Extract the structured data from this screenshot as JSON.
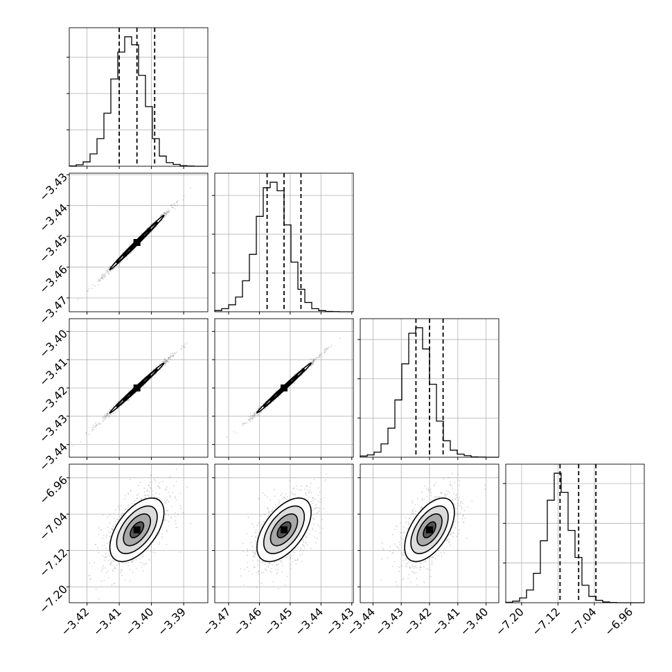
{
  "figure": {
    "type": "corner",
    "grid": true,
    "colors": {
      "line": "#000000",
      "grid": "#b0b0b0",
      "scatter": "#808080"
    }
  },
  "chart_data": {
    "type": "corner",
    "n_params": 4,
    "x_ranges": [
      [
        -3.4255,
        -3.3825
      ],
      [
        -3.4745,
        -3.4295
      ],
      [
        -3.4445,
        -3.3955
      ],
      [
        -7.235,
        -6.93
      ]
    ],
    "y_ranges": [
      null,
      [
        -3.4745,
        -3.4295
      ],
      [
        -3.4445,
        -3.3955
      ],
      [
        -7.235,
        -6.93
      ]
    ],
    "x_ticks": [
      [
        -3.42,
        -3.41,
        -3.4,
        -3.39
      ],
      [
        -3.47,
        -3.46,
        -3.45,
        -3.44,
        -3.43
      ],
      [
        -3.44,
        -3.43,
        -3.42,
        -3.41,
        -3.4
      ],
      [
        -7.2,
        -7.12,
        -7.04,
        -6.96
      ]
    ],
    "x_tick_labels": [
      [
        "−3.42",
        "−3.41",
        "−3.40",
        "−3.39"
      ],
      [
        "−3.47",
        "−3.46",
        "−3.45",
        "−3.44",
        "−3.43"
      ],
      [
        "−3.44",
        "−3.43",
        "−3.42",
        "−3.41",
        "−3.40"
      ],
      [
        "−7.20",
        "−7.12",
        "−7.04",
        "−6.96"
      ]
    ],
    "y_ticks": [
      null,
      [
        -3.47,
        -3.46,
        -3.45,
        -3.44,
        -3.43
      ],
      [
        -3.44,
        -3.43,
        -3.42,
        -3.41,
        -3.4
      ],
      [
        -7.2,
        -7.12,
        -7.04,
        -6.96
      ]
    ],
    "y_tick_labels": [
      null,
      [
        "−3.47",
        "−3.46",
        "−3.45",
        "−3.44",
        "−3.43"
      ],
      [
        "−3.44",
        "−3.43",
        "−3.42",
        "−3.41",
        "−3.40"
      ],
      [
        "−7.20",
        "−7.12",
        "−7.04",
        "−6.96"
      ]
    ],
    "histograms": [
      {
        "param": 0,
        "bin_edges_range": [
          -3.4255,
          -3.3825
        ],
        "bins": 20,
        "counts": [
          0.4,
          2,
          6,
          17,
          38,
          73,
          120,
          157,
          178,
          167,
          125,
          82,
          38,
          14,
          5,
          2.5,
          0.8,
          0.3,
          0,
          0
        ],
        "quantiles": [
          -3.41,
          -3.4045,
          -3.399
        ]
      },
      {
        "param": 1,
        "bin_edges_range": [
          -3.4745,
          -3.4295
        ],
        "bins": 20,
        "counts": [
          1.5,
          4,
          9,
          19,
          40,
          74,
          123,
          160,
          167,
          156,
          112,
          64,
          29,
          12,
          4,
          1.5,
          0.4,
          0.2,
          0,
          0
        ],
        "quantiles": [
          -3.4575,
          -3.452,
          -3.4465
        ]
      },
      {
        "param": 2,
        "bin_edges_range": [
          -3.4445,
          -3.3955
        ],
        "bins": 20,
        "counts": [
          1.5,
          3,
          6.5,
          17,
          37,
          73,
          119,
          158,
          165,
          138,
          93,
          46,
          21,
          9,
          4,
          2,
          0.4,
          0.2,
          0,
          0
        ],
        "quantiles": [
          -3.4248,
          -3.42,
          -3.4152
        ]
      },
      {
        "param": 3,
        "bin_edges_range": [
          -7.235,
          -6.93
        ],
        "bins": 20,
        "counts": [
          0.5,
          2,
          6,
          16,
          37,
          78,
          129,
          163,
          139,
          91,
          57,
          22,
          8,
          3,
          1,
          0.3,
          0,
          0,
          0,
          0
        ],
        "quantiles": [
          -7.1155,
          -7.0745,
          -7.0365
        ]
      }
    ],
    "pairs": [
      {
        "x": 0,
        "y": 1,
        "corr": 0.995,
        "mean": [
          -3.4045,
          -3.452
        ],
        "std": [
          0.0042,
          0.0044
        ]
      },
      {
        "x": 0,
        "y": 2,
        "corr": 0.995,
        "mean": [
          -3.4045,
          -3.42
        ],
        "std": [
          0.0042,
          0.0044
        ]
      },
      {
        "x": 1,
        "y": 2,
        "corr": 0.995,
        "mean": [
          -3.452,
          -3.42
        ],
        "std": [
          0.0044,
          0.0044
        ]
      },
      {
        "x": 0,
        "y": 3,
        "corr": 0.55,
        "mean": [
          -3.4045,
          -7.0745
        ],
        "std": [
          0.0042,
          0.035
        ]
      },
      {
        "x": 1,
        "y": 3,
        "corr": 0.55,
        "mean": [
          -3.452,
          -7.0745
        ],
        "std": [
          0.0044,
          0.035
        ]
      },
      {
        "x": 2,
        "y": 3,
        "corr": 0.55,
        "mean": [
          -3.42,
          -7.0745
        ],
        "std": [
          0.0044,
          0.035
        ]
      }
    ]
  }
}
